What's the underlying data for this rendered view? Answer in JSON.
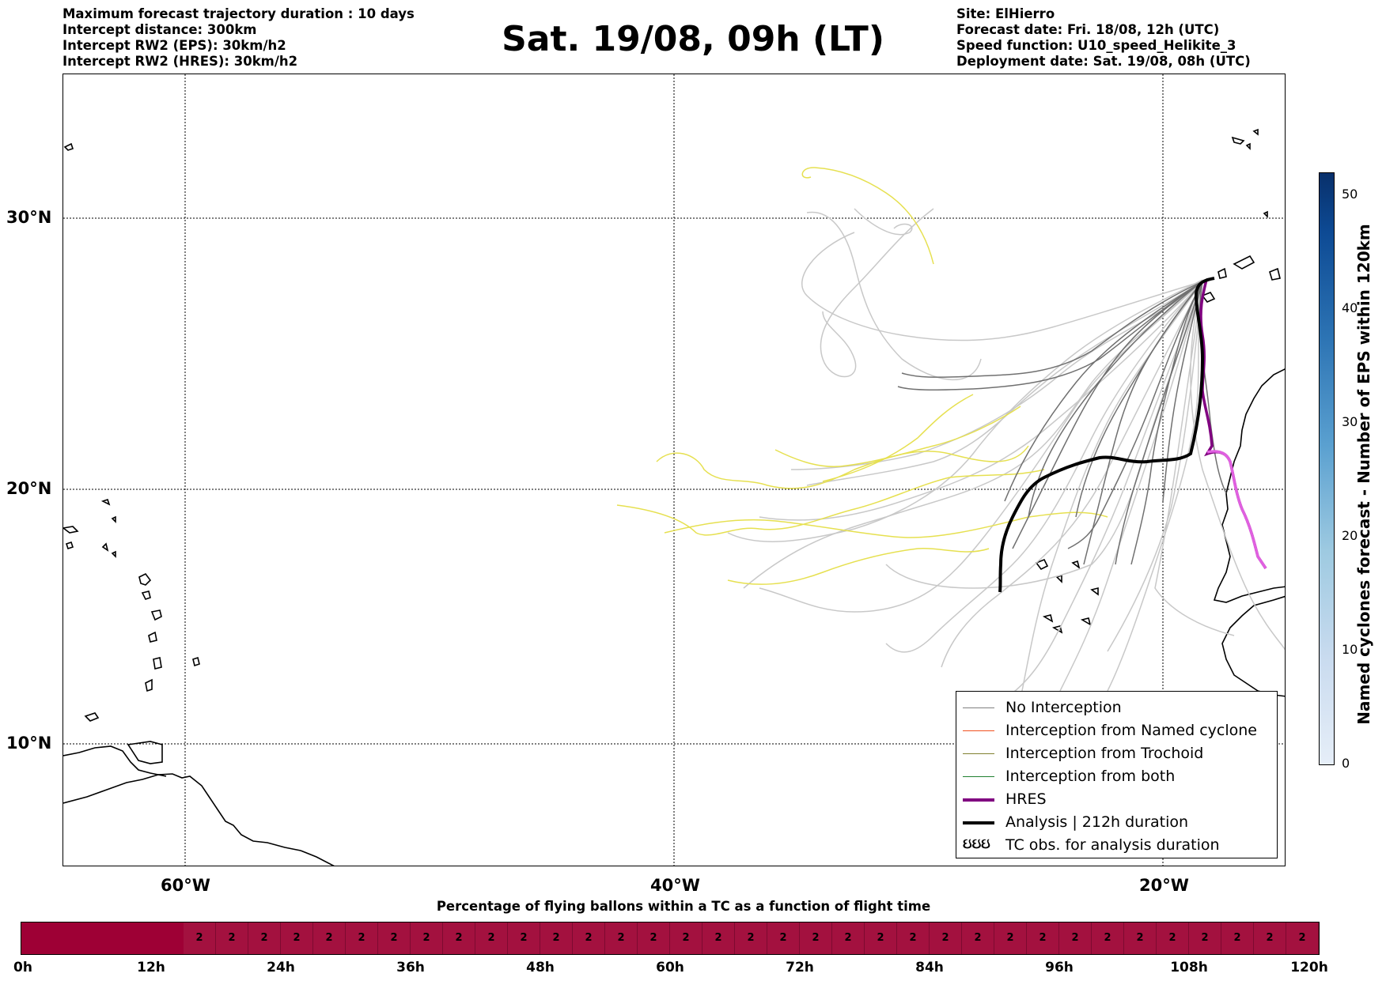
{
  "header_left": [
    "Maximum forecast trajectory duration : 10 days",
    "Intercept distance: 300km",
    "Intercept RW2 (EPS):  30km/h2",
    "Intercept RW2 (HRES): 30km/h2"
  ],
  "title": "Sat. 19/08, 09h (LT)",
  "header_right": [
    "Site: ElHierro",
    "Forecast date: Fri. 18/08, 12h (UTC)",
    "Speed function: U10_speed_Helikite_3",
    "Deployment date: Sat. 19/08, 08h (UTC)"
  ],
  "map": {
    "lat_labels": [
      "30°N",
      "20°N",
      "10°N"
    ],
    "lon_labels": [
      "60°W",
      "40°W",
      "20°W"
    ],
    "gridlines": true
  },
  "legend": {
    "items": [
      {
        "label": "No Interception",
        "color": "#808080",
        "style": "thin"
      },
      {
        "label": "Interception from Named cyclone",
        "color": "#f05020",
        "style": "thin"
      },
      {
        "label": "Interception from Trochoid",
        "color": "#808030",
        "style": "thin"
      },
      {
        "label": "Interception from both",
        "color": "#208030",
        "style": "thin"
      },
      {
        "label": "HRES",
        "color": "#800080",
        "style": "thick"
      },
      {
        "label": "Analysis | 212h duration",
        "color": "#000000",
        "style": "thick"
      },
      {
        "label": "TC obs. for analysis duration",
        "color": "#000000",
        "style": "symbol",
        "symbol": "ઇઇઇ"
      }
    ]
  },
  "colorbar": {
    "label": "Named cyclones forecast - Number of EPS within 120km",
    "ticks": [
      "0",
      "10",
      "20",
      "30",
      "40",
      "50"
    ],
    "range": [
      0,
      52
    ]
  },
  "bottom_bar": {
    "title": "Percentage of flying ballons within a TC as a function of flight time",
    "time_labels": [
      "0h",
      "12h",
      "24h",
      "36h",
      "48h",
      "60h",
      "72h",
      "84h",
      "96h",
      "108h",
      "120h"
    ],
    "cell_value": "2",
    "color": "#a3113f"
  }
}
